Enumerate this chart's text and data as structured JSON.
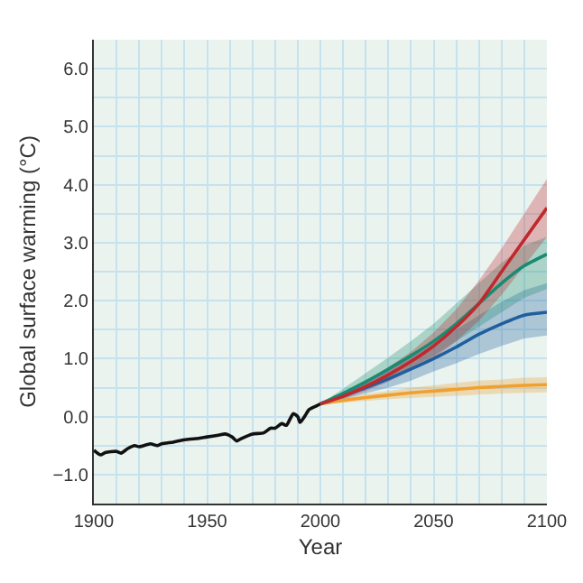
{
  "chart_data": {
    "type": "line",
    "xlabel": "Year",
    "ylabel": "Global surface warming (°C)",
    "xlim": [
      1900,
      2100
    ],
    "xticks": [
      1900,
      1950,
      2000,
      2050,
      2100
    ],
    "ylim": [
      -1.5,
      6.5
    ],
    "yticks": [
      {
        "value": -1,
        "label": "−1.0"
      },
      {
        "value": 0,
        "label": "0.0"
      },
      {
        "value": 1,
        "label": "1.0"
      },
      {
        "value": 2,
        "label": "2.0"
      },
      {
        "value": 3,
        "label": "3.0"
      },
      {
        "value": 4,
        "label": "4.0"
      },
      {
        "value": 5,
        "label": "5.0"
      },
      {
        "value": 6,
        "label": "6.0"
      }
    ],
    "grid": true,
    "marker": "none",
    "line_style": "solid",
    "series": [
      {
        "color": "#111111",
        "x": [
          1900,
          1903,
          1905,
          1910,
          1912,
          1915,
          1918,
          1920,
          1925,
          1928,
          1930,
          1935,
          1940,
          1945,
          1950,
          1955,
          1958,
          1961,
          1963,
          1965,
          1970,
          1975,
          1978,
          1980,
          1983,
          1985,
          1988,
          1990,
          1991,
          1993,
          1995,
          1998,
          2000
        ],
        "values": [
          -0.58,
          -0.66,
          -0.62,
          -0.6,
          -0.63,
          -0.55,
          -0.5,
          -0.52,
          -0.47,
          -0.5,
          -0.47,
          -0.44,
          -0.4,
          -0.38,
          -0.35,
          -0.32,
          -0.3,
          -0.35,
          -0.42,
          -0.38,
          -0.3,
          -0.28,
          -0.2,
          -0.2,
          -0.12,
          -0.15,
          0.05,
          0,
          -0.1,
          0,
          0.12,
          0.18,
          0.22
        ]
      },
      {
        "color": "#f0a030",
        "x": [
          2000,
          2010,
          2020,
          2030,
          2040,
          2050,
          2060,
          2070,
          2080,
          2090,
          2100
        ],
        "values": [
          0.22,
          0.28,
          0.33,
          0.37,
          0.41,
          0.44,
          0.47,
          0.5,
          0.52,
          0.54,
          0.55
        ],
        "lower": [
          0.22,
          0.24,
          0.27,
          0.3,
          0.32,
          0.34,
          0.36,
          0.38,
          0.4,
          0.41,
          0.42
        ],
        "upper": [
          0.22,
          0.32,
          0.39,
          0.44,
          0.5,
          0.54,
          0.58,
          0.62,
          0.64,
          0.67,
          0.68
        ]
      },
      {
        "color": "#1f5f9e",
        "x": [
          2000,
          2010,
          2020,
          2030,
          2040,
          2050,
          2060,
          2070,
          2080,
          2090,
          2100
        ],
        "values": [
          0.22,
          0.35,
          0.5,
          0.65,
          0.82,
          1.0,
          1.2,
          1.42,
          1.6,
          1.75,
          1.8
        ],
        "lower": [
          0.22,
          0.3,
          0.4,
          0.5,
          0.62,
          0.78,
          0.92,
          1.08,
          1.22,
          1.35,
          1.4
        ],
        "upper": [
          0.22,
          0.42,
          0.62,
          0.82,
          1.02,
          1.25,
          1.5,
          1.75,
          1.98,
          2.18,
          2.3
        ]
      },
      {
        "color": "#1a8a72",
        "x": [
          2000,
          2010,
          2020,
          2030,
          2040,
          2050,
          2060,
          2070,
          2080,
          2090,
          2100
        ],
        "values": [
          0.22,
          0.4,
          0.6,
          0.82,
          1.05,
          1.3,
          1.6,
          1.95,
          2.3,
          2.6,
          2.8
        ],
        "lower": [
          0.22,
          0.34,
          0.48,
          0.65,
          0.85,
          1.05,
          1.3,
          1.55,
          1.8,
          2.05,
          2.2
        ],
        "upper": [
          0.22,
          0.48,
          0.75,
          1.02,
          1.3,
          1.6,
          1.95,
          2.3,
          2.65,
          2.95,
          3.1
        ]
      },
      {
        "color": "#c0282d",
        "x": [
          2000,
          2010,
          2020,
          2030,
          2040,
          2050,
          2060,
          2070,
          2080,
          2090,
          2100
        ],
        "values": [
          0.22,
          0.35,
          0.52,
          0.72,
          0.95,
          1.22,
          1.55,
          1.95,
          2.5,
          3.05,
          3.6
        ],
        "lower": [
          0.22,
          0.3,
          0.44,
          0.6,
          0.8,
          1.0,
          1.3,
          1.65,
          2.1,
          2.6,
          3.1
        ],
        "upper": [
          0.22,
          0.4,
          0.6,
          0.85,
          1.12,
          1.45,
          1.85,
          2.35,
          2.9,
          3.5,
          4.1
        ]
      }
    ]
  }
}
